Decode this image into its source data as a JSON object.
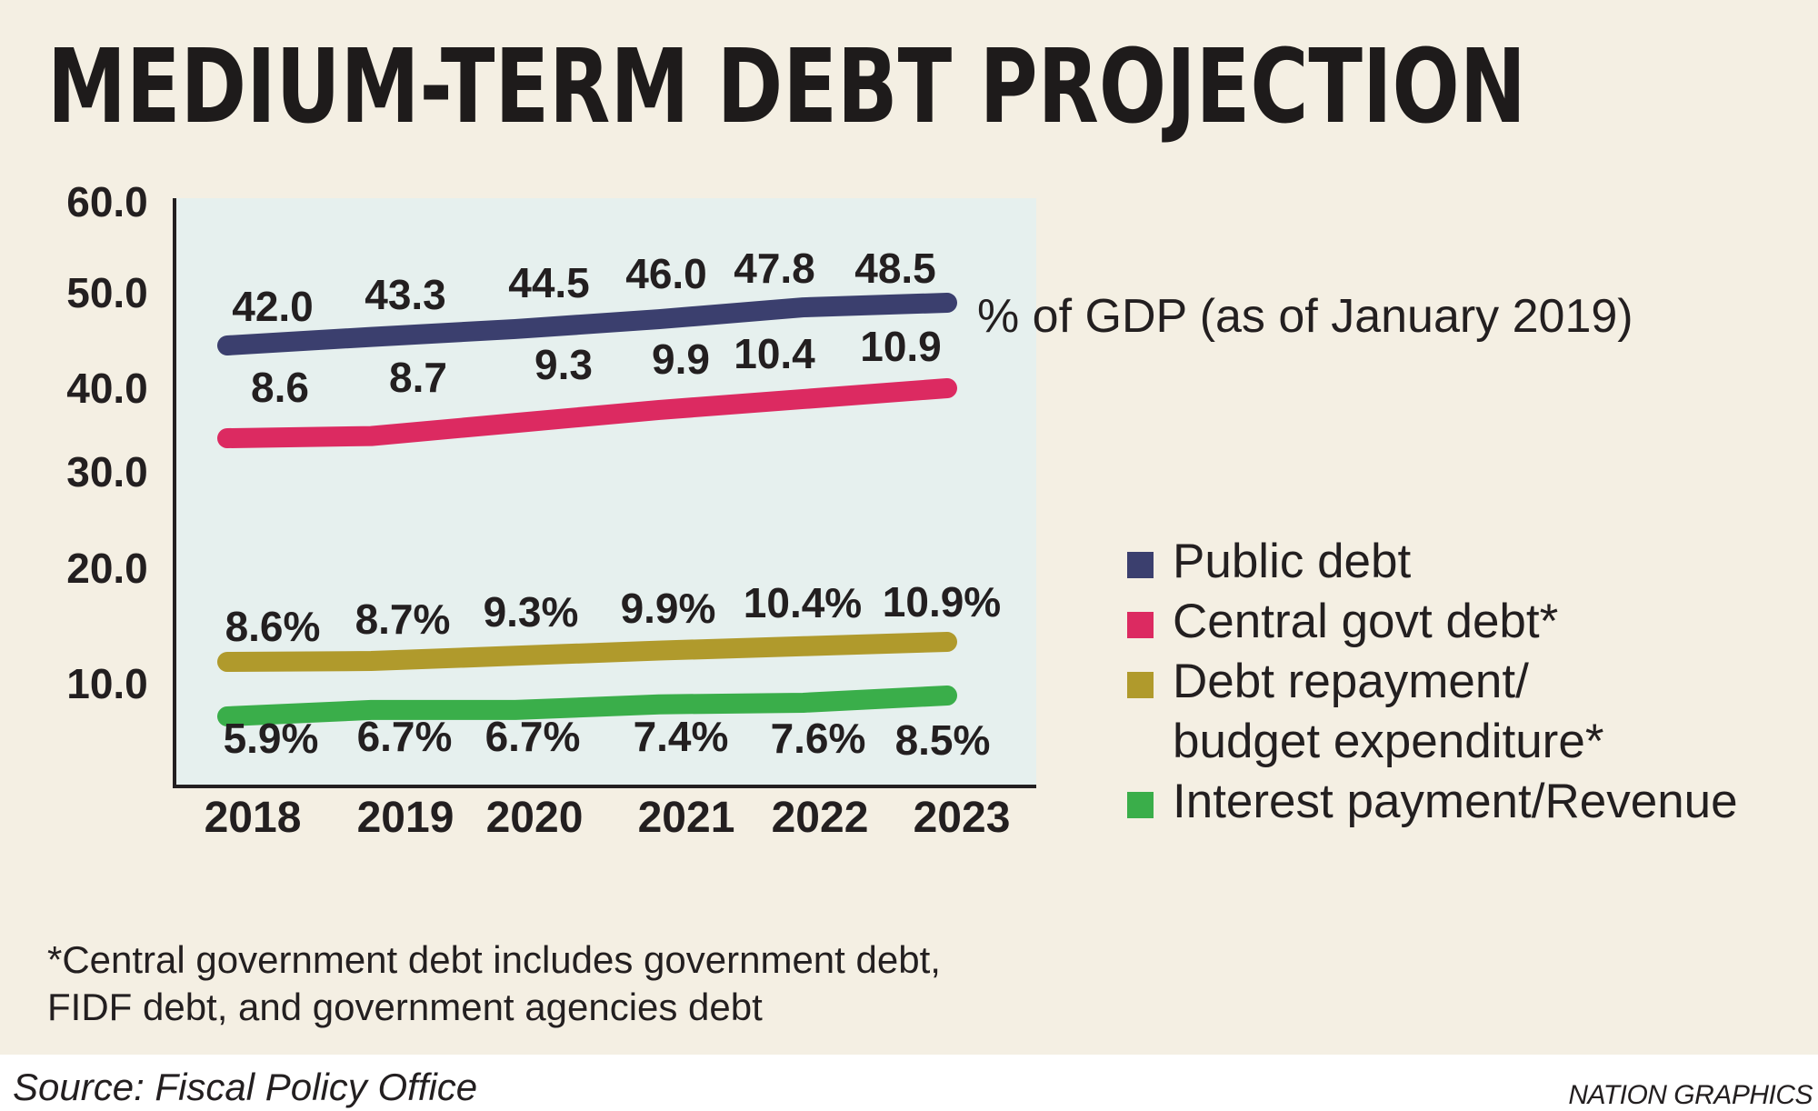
{
  "chart_data": {
    "type": "line",
    "title": "MEDIUM-TERM DEBT PROJECTION",
    "subtitle": "% of GDP (as of January 2019)",
    "categories": [
      "2018",
      "2019",
      "2020",
      "2021",
      "2022",
      "2023"
    ],
    "y_ticks": [
      "60.0",
      "50.0",
      "40.0",
      "30.0",
      "20.0",
      "10.0"
    ],
    "ylim": [
      0,
      60
    ],
    "grid": false,
    "legend_position": "right",
    "series": [
      {
        "name": "Public debt",
        "color": "#3b3f6e",
        "values": [
          42.0,
          43.3,
          44.5,
          46.0,
          47.8,
          48.5
        ],
        "labels": [
          "42.0",
          "43.3",
          "44.5",
          "46.0",
          "47.8",
          "48.5"
        ]
      },
      {
        "name": "Central govt debt*",
        "color": "#dc2a61",
        "values": [
          8.6,
          8.7,
          9.3,
          9.9,
          10.4,
          10.9
        ],
        "labels": [
          "8.6",
          "8.7",
          "9.3",
          "9.9",
          "10.4",
          "10.9"
        ]
      },
      {
        "name": "Debt repayment/\nbudget expenditure*",
        "color": "#b09a2c",
        "values": [
          8.6,
          8.7,
          9.3,
          9.9,
          10.4,
          10.9
        ],
        "labels": [
          "8.6%",
          "8.7%",
          "9.3%",
          "9.9%",
          "10.4%",
          "10.9%"
        ]
      },
      {
        "name": "Interest payment/Revenue",
        "color": "#3aae4a",
        "values": [
          5.9,
          6.7,
          6.7,
          7.4,
          7.6,
          8.5
        ],
        "labels": [
          "5.9%",
          "6.7%",
          "6.7%",
          "7.4%",
          "7.6%",
          "8.5%"
        ]
      }
    ]
  },
  "footnote": "*Central government debt includes government debt,\n  FIDF debt, and government agencies debt",
  "source": "Source: Fiscal Policy Office",
  "credit": "NATION GRAPHICS",
  "colors": {
    "page_background": "#f4efe3",
    "plot_background": "#e6f0ee",
    "axis": "#231f20"
  }
}
